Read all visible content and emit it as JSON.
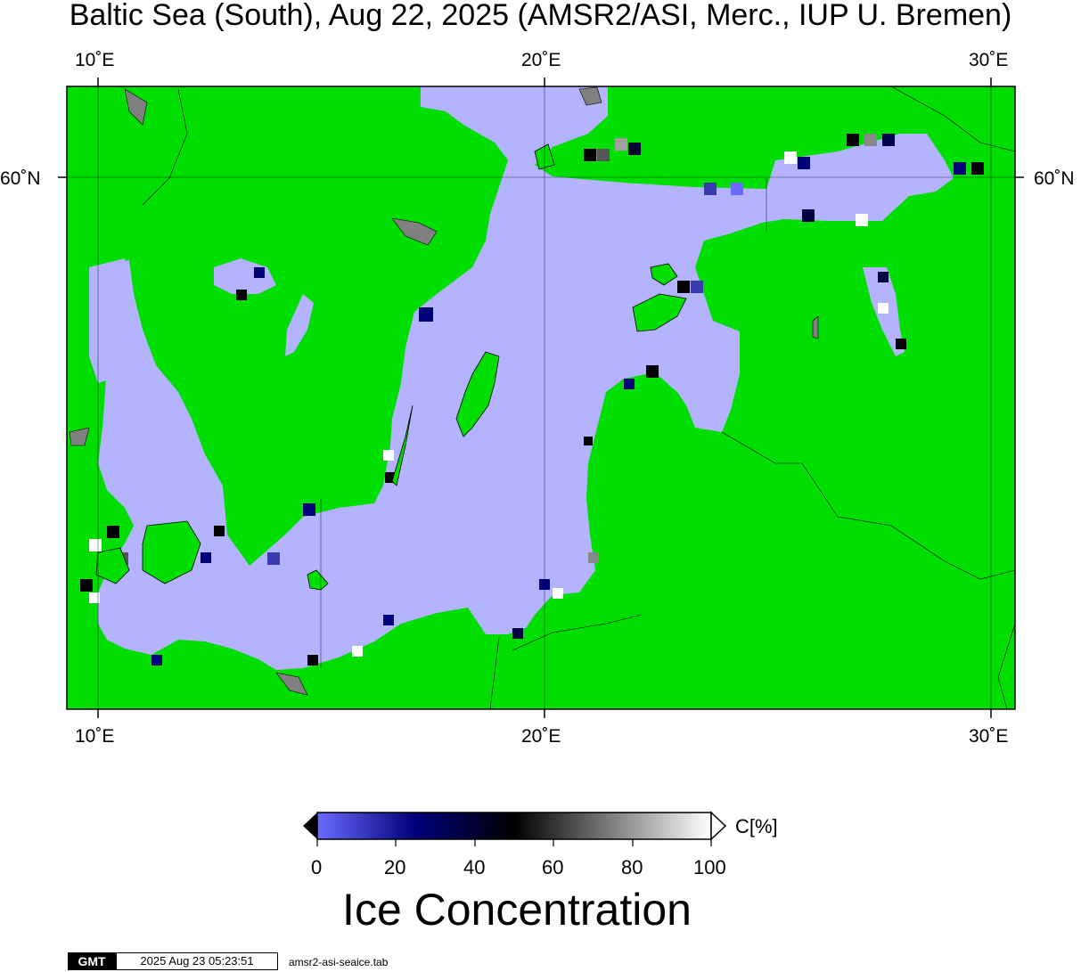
{
  "map": {
    "title": "Baltic Sea (South), Aug 22, 2025 (AMSR2/ASI, Merc., IUP U. Bremen)",
    "lon_ticks": [
      "10˚E",
      "20˚E",
      "30˚E"
    ],
    "lat_ticks": [
      "60˚N"
    ],
    "colors": {
      "land": "#00dd00",
      "open_water": "#b3b3ff",
      "land_ice": "#808080",
      "border": "#000000"
    }
  },
  "colorbar": {
    "unit_label": "C[%]",
    "tick_labels": [
      "0",
      "20",
      "40",
      "60",
      "80",
      "100"
    ],
    "title": "Ice Concentration",
    "colors": [
      "#6a6aff",
      "#00007a",
      "#000000",
      "#808080",
      "#ffffff"
    ]
  },
  "footer": {
    "logo": "GMT",
    "timestamp": "2025 Aug 23 05:23:51",
    "command": "amsr2-asi-seaice.tab"
  }
}
